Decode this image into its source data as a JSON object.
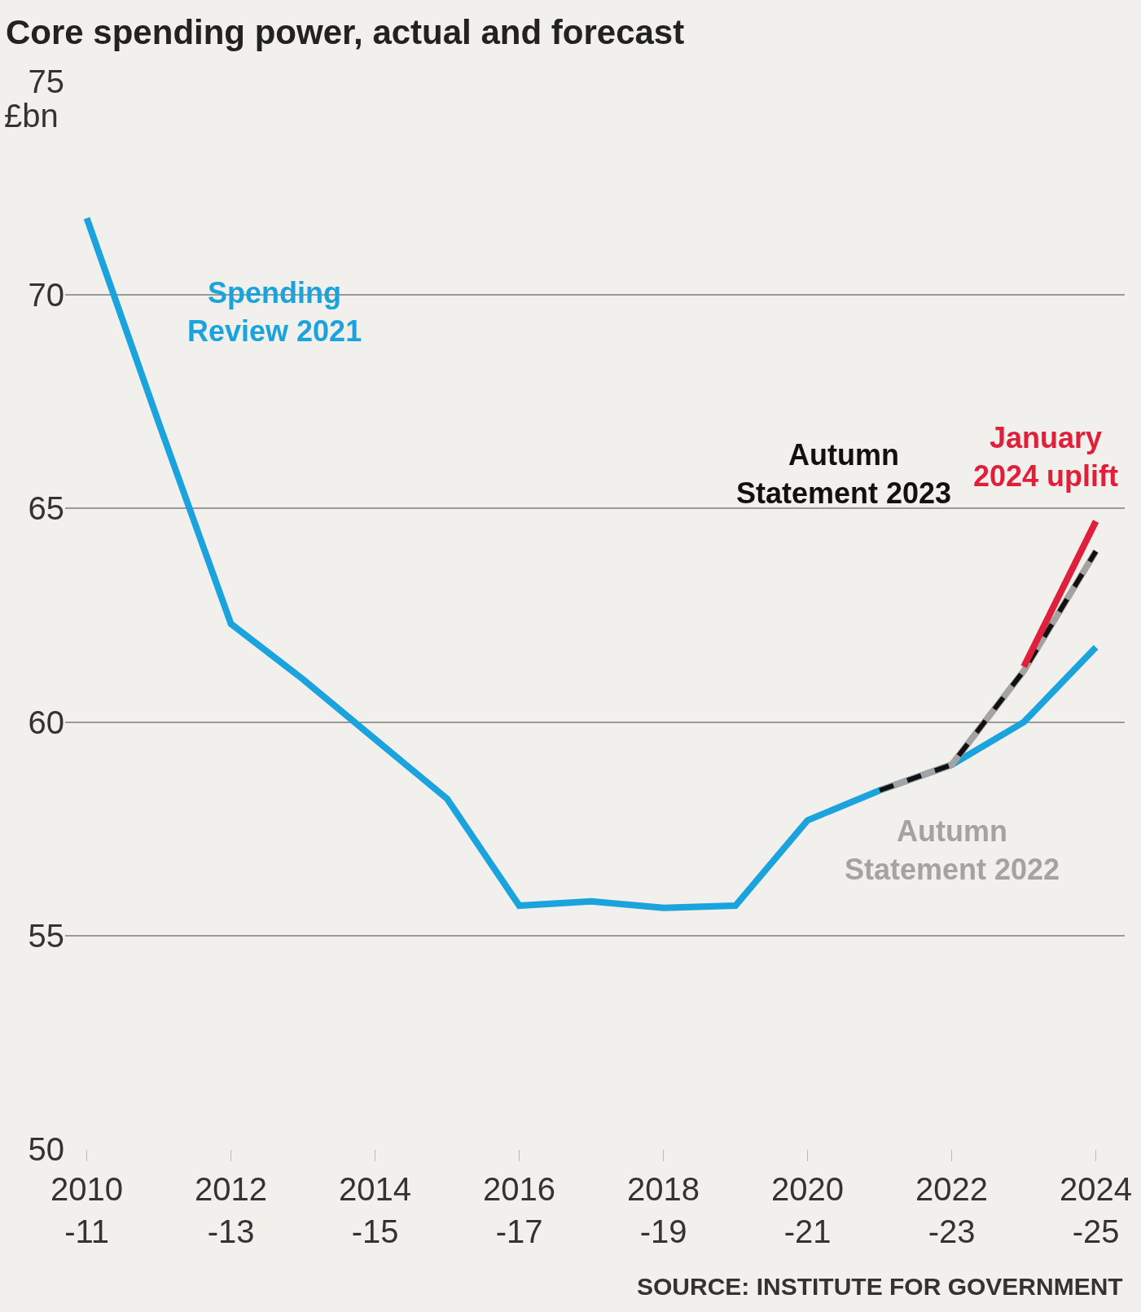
{
  "chart_data": {
    "type": "line",
    "title": "Core spending power, actual and forecast",
    "ylabel": "£bn",
    "categories": [
      "2010-11",
      null,
      "2012-13",
      null,
      "2014-15",
      null,
      "2016-17",
      null,
      "2018-19",
      null,
      "2020-21",
      null,
      "2022-23",
      null,
      "2024-25"
    ],
    "series": [
      {
        "name": "Spending Review 2021",
        "color": "#1aa3dd",
        "line_style": "solid",
        "values": [
          71.8,
          67.0,
          62.3,
          61.0,
          59.6,
          58.2,
          55.7,
          55.8,
          55.65,
          55.7,
          57.7,
          58.4,
          59.0,
          60.0,
          61.75
        ]
      },
      {
        "name": "Autumn Statement 2022",
        "color": "#a3a3a3",
        "line_style": "solid",
        "values": [
          null,
          null,
          null,
          null,
          null,
          null,
          null,
          null,
          null,
          null,
          null,
          58.4,
          59.0,
          61.2,
          64.0
        ]
      },
      {
        "name": "Autumn Statement 2023",
        "color": "#111111",
        "line_style": "dashed",
        "values": [
          null,
          null,
          null,
          null,
          null,
          null,
          null,
          null,
          null,
          null,
          null,
          58.4,
          59.0,
          61.2,
          64.0
        ]
      },
      {
        "name": "January 2024 uplift",
        "color": "#e0203a",
        "line_style": "solid",
        "values": [
          null,
          null,
          null,
          null,
          null,
          null,
          null,
          null,
          null,
          null,
          null,
          null,
          null,
          61.3,
          64.7
        ]
      }
    ],
    "ylim": [
      50,
      75
    ],
    "yticks": [
      50,
      55,
      60,
      65,
      70,
      75
    ],
    "grid": "y",
    "legend": false,
    "annotations": [
      "SOURCE: INSTITUTE FOR GOVERNMENT"
    ]
  }
}
